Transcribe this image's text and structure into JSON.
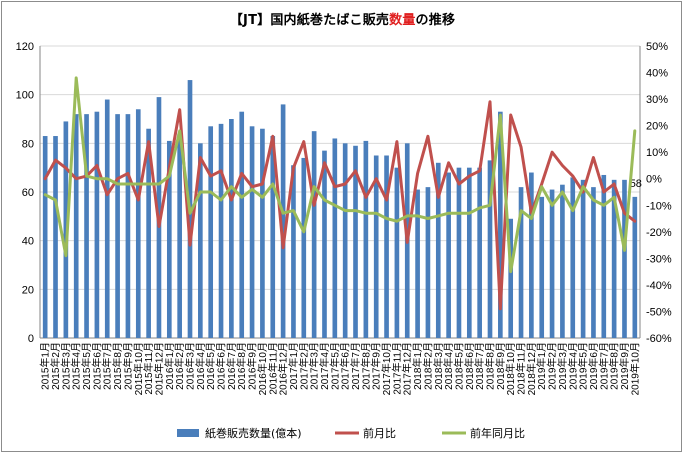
{
  "title": {
    "prefix": "【JT】国内紙巻たばこ販売",
    "highlight": "数量",
    "suffix": "の推移",
    "highlight_color": "#e02020"
  },
  "chart_data": {
    "type": "bar+line",
    "categories": [
      "2015年1月",
      "2015年2月",
      "2015年3月",
      "2015年4月",
      "2015年5月",
      "2015年6月",
      "2015年7月",
      "2015年8月",
      "2015年9月",
      "2015年10月",
      "2015年11月",
      "2015年12月",
      "2016年1月",
      "2016年2月",
      "2016年3月",
      "2016年4月",
      "2016年5月",
      "2016年6月",
      "2016年7月",
      "2016年8月",
      "2016年9月",
      "2016年10月",
      "2016年11月",
      "2016年12月",
      "2017年1月",
      "2017年2月",
      "2017年3月",
      "2017年4月",
      "2017年5月",
      "2017年6月",
      "2017年7月",
      "2017年8月",
      "2017年9月",
      "2017年10月",
      "2017年11月",
      "2017年12月",
      "2018年1月",
      "2018年2月",
      "2018年3月",
      "2018年4月",
      "2018年5月",
      "2018年6月",
      "2018年7月",
      "2018年8月",
      "2018年9月",
      "2018年10月",
      "2018年11月",
      "2018年12月",
      "2019年1月",
      "2019年2月",
      "2019年3月",
      "2019年4月",
      "2019年5月",
      "2019年6月",
      "2019年7月",
      "2019年8月",
      "2019年9月",
      "2019年10月"
    ],
    "y_left": {
      "min": 0,
      "max": 120,
      "step": 20
    },
    "y_right": {
      "min": -60,
      "max": 50,
      "step": 10,
      "unit": "%"
    },
    "series": [
      {
        "name": "紙巻販売数量(億本)",
        "kind": "bar",
        "axis": "left",
        "color": "#4a7ebb",
        "values": [
          83,
          83,
          89,
          92,
          92,
          93,
          98,
          92,
          92,
          94,
          86,
          99,
          81,
          84,
          106,
          80,
          87,
          88,
          90,
          93,
          87,
          86,
          83,
          96,
          71,
          74,
          85,
          77,
          82,
          80,
          79,
          81,
          75,
          75,
          70,
          80,
          61,
          62,
          72,
          68,
          70,
          70,
          70,
          73,
          93,
          49,
          62,
          68,
          58,
          61,
          63,
          66,
          65,
          62,
          67,
          65,
          65,
          58
        ],
        "labels": {
          "57": "58"
        }
      },
      {
        "name": "前月比",
        "kind": "line",
        "axis": "right",
        "color": "#c0504d",
        "values": [
          0,
          7,
          4,
          0,
          1,
          5,
          -6,
          0,
          2,
          -8,
          14,
          -18,
          4,
          26,
          -25,
          8,
          1,
          3,
          -8,
          2,
          -3,
          -2,
          16,
          -26,
          4,
          14,
          -10,
          6,
          -3,
          -2,
          3,
          -7,
          0,
          -8,
          14,
          -24,
          2,
          16,
          -7,
          6,
          -2,
          1,
          3,
          29,
          -49,
          24,
          12,
          -13,
          -2,
          10,
          5,
          1,
          -5,
          8,
          -5,
          -2,
          -13,
          -16
        ]
      },
      {
        "name": "前年同月比",
        "kind": "line",
        "axis": "right",
        "color": "#9bbb59",
        "values": [
          -6,
          -8,
          -29,
          38,
          1,
          0,
          0,
          -2,
          -2,
          -2,
          -2,
          -2,
          1,
          18,
          -13,
          -5,
          -5,
          -8,
          -3,
          -7,
          -4,
          -7,
          -2,
          -13,
          -12,
          -20,
          -3,
          -8,
          -10,
          -12,
          -12,
          -13,
          -13,
          -15,
          -16,
          -14,
          -14,
          -15,
          -14,
          -13,
          -13,
          -13,
          -11,
          -10,
          24,
          -35,
          -12,
          -15,
          -3,
          -10,
          -5,
          -12,
          -3,
          -8,
          -10,
          -7,
          -27,
          18
        ]
      }
    ],
    "legend": {
      "position": "bottom"
    },
    "grid": true
  }
}
